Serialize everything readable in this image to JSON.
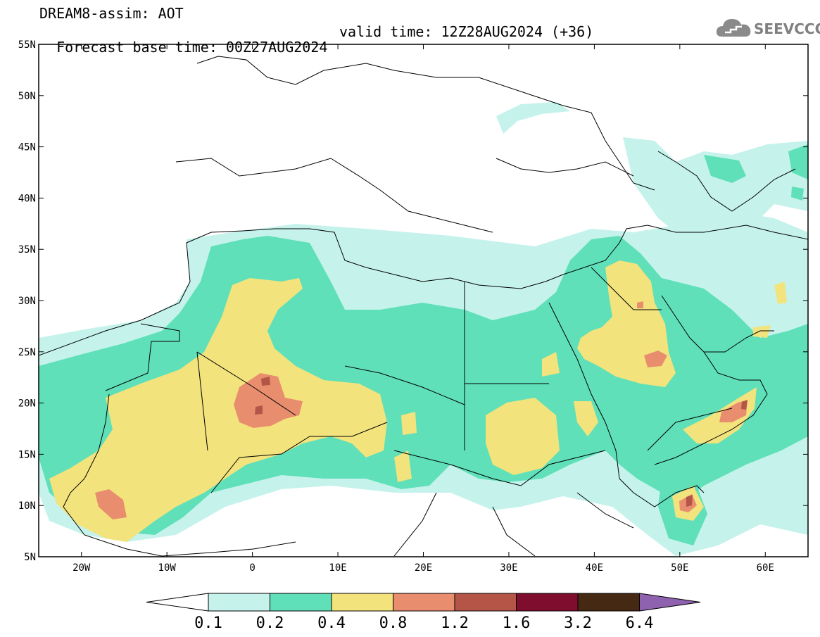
{
  "header": {
    "title": "DREAM8-assim: AOT",
    "base_time_label": "Forecast base time: 00Z27AUG2024",
    "valid_time_label": "valid time: 12Z28AUG2024 (+36)"
  },
  "logo": {
    "text": "SEEVCCC",
    "icon": "cloud-icon"
  },
  "map": {
    "lat_labels": [
      "55N",
      "50N",
      "45N",
      "40N",
      "35N",
      "30N",
      "25N",
      "20N",
      "15N",
      "10N",
      "5N"
    ],
    "lon_labels": [
      "20W",
      "10W",
      "0",
      "10E",
      "20E",
      "30E",
      "40E",
      "50E",
      "60E"
    ],
    "extent": {
      "lon_min": -25,
      "lon_max": 65,
      "lat_min": 5,
      "lat_max": 55
    }
  },
  "colorbar": {
    "levels": [
      "0.1",
      "0.2",
      "0.4",
      "0.8",
      "1.2",
      "1.6",
      "3.2",
      "6.4"
    ],
    "colors": [
      "#ffffff",
      "#c5f3ec",
      "#5fe0b9",
      "#f3e37d",
      "#e88e6e",
      "#b55548",
      "#7e0d2e",
      "#452913",
      "#8f62b0"
    ]
  }
}
